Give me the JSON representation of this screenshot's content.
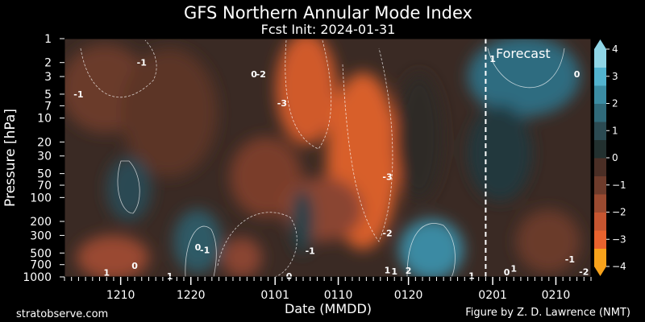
{
  "chart_data": {
    "type": "heatmap",
    "title": "GFS Northern Annular Mode Index",
    "subtitle": "Fcst Init: 2024-01-31",
    "xlabel": "Date (MMDD)",
    "ylabel": "Pressure [hPa]",
    "x_tick_labels": [
      "1210",
      "1220",
      "0101",
      "0110",
      "0120",
      "0201",
      "0210"
    ],
    "y_tick_labels": [
      "1",
      "2",
      "3",
      "5",
      "7",
      "10",
      "20",
      "30",
      "50",
      "70",
      "100",
      "200",
      "300",
      "500",
      "700",
      "1000"
    ],
    "y_axis_scale": "log",
    "ylim": [
      1000,
      1
    ],
    "x_range_start": "2023-12-02",
    "x_range_end": "2024-02-15",
    "forecast_start": "2024-01-31",
    "annotation": "Forecast",
    "colorbar": {
      "ticks": [
        "-4",
        "-3",
        "-2",
        "-1",
        "0",
        "1",
        "2",
        "3",
        "4"
      ],
      "range": [
        -4,
        4
      ],
      "colors_negative": [
        "#f7a21b",
        "#e8622e",
        "#c55530",
        "#9a4a30",
        "#6d3b2b",
        "#4a2e25"
      ],
      "colors_positive": [
        "#22302f",
        "#2b4a52",
        "#306a7a",
        "#3b8ca3",
        "#52b3cf",
        "#8fd5e6"
      ]
    },
    "contour_labels": [
      {
        "text": "-1",
        "date": "2023-12-04",
        "p": 5
      },
      {
        "text": "-1",
        "date": "2023-12-13",
        "p": 2
      },
      {
        "text": "0",
        "date": "2023-12-29",
        "p": 2.8
      },
      {
        "text": "-2",
        "date": "2023-12-30",
        "p": 2.8
      },
      {
        "text": "-3",
        "date": "2024-01-02",
        "p": 6.5
      },
      {
        "text": "-3",
        "date": "2024-01-17",
        "p": 55
      },
      {
        "text": "-2",
        "date": "2024-01-17",
        "p": 280
      },
      {
        "text": "1",
        "date": "2024-02-01",
        "p": 1.8
      },
      {
        "text": "0",
        "date": "2024-02-13",
        "p": 2.8
      },
      {
        "text": "0",
        "date": "2023-12-21",
        "p": 420
      },
      {
        "text": "-1",
        "date": "2023-12-22",
        "p": 460
      },
      {
        "text": "-1",
        "date": "2024-01-06",
        "p": 470
      },
      {
        "text": "1",
        "date": "2023-12-08",
        "p": 880
      },
      {
        "text": "0",
        "date": "2023-12-12",
        "p": 720
      },
      {
        "text": "1",
        "date": "2023-12-17",
        "p": 980
      },
      {
        "text": "0",
        "date": "2024-01-03",
        "p": 980
      },
      {
        "text": "1",
        "date": "2024-01-17",
        "p": 820
      },
      {
        "text": "1",
        "date": "2024-01-18",
        "p": 850
      },
      {
        "text": "2",
        "date": "2024-01-20",
        "p": 830
      },
      {
        "text": "1",
        "date": "2024-01-29",
        "p": 960
      },
      {
        "text": "0",
        "date": "2024-02-03",
        "p": 870
      },
      {
        "text": "1",
        "date": "2024-02-04",
        "p": 780
      },
      {
        "text": "-1",
        "date": "2024-02-12",
        "p": 600
      },
      {
        "text": "-2",
        "date": "2024-02-14",
        "p": 860
      }
    ]
  },
  "footer": {
    "left": "stratobserve.com",
    "right": "Figure by Z. D. Lawrence (NMT)"
  }
}
